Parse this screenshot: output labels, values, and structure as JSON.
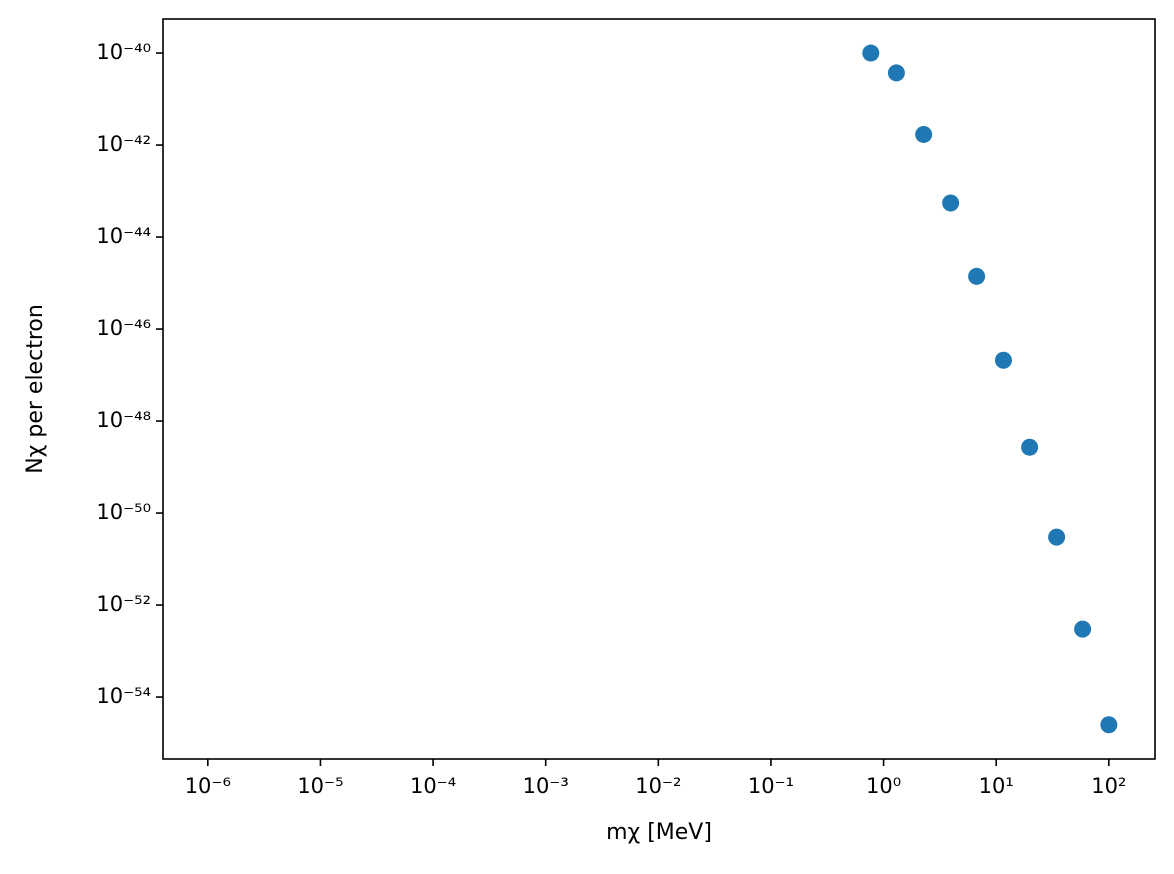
{
  "chart_data": {
    "type": "scatter",
    "x_label": "mχ [MeV]",
    "y_label": "Nχ per electron",
    "x_log": true,
    "y_log": true,
    "color": "#1f77b4",
    "x": [
      0.77,
      1.3,
      2.27,
      3.94,
      6.7,
      11.6,
      19.8,
      34.4,
      58.5,
      100
    ],
    "values": [
      1e-40,
      3.7e-41,
      1.7e-42,
      5.5e-44,
      1.4e-45,
      2.1e-47,
      2.7e-49,
      3e-51,
      3e-53,
      2.5e-55
    ],
    "xlim": [
      4e-07,
      257
    ],
    "ylim": [
      4.5e-56,
      5.5e-40
    ],
    "xticks": [
      {
        "value": 1e-06,
        "label": "10⁻⁶"
      },
      {
        "value": 1e-05,
        "label": "10⁻⁵"
      },
      {
        "value": 0.0001,
        "label": "10⁻⁴"
      },
      {
        "value": 0.001,
        "label": "10⁻³"
      },
      {
        "value": 0.01,
        "label": "10⁻²"
      },
      {
        "value": 0.1,
        "label": "10⁻¹"
      },
      {
        "value": 1,
        "label": "10⁰"
      },
      {
        "value": 10,
        "label": "10¹"
      },
      {
        "value": 100,
        "label": "10²"
      }
    ],
    "yticks": [
      {
        "value": 1e-40,
        "label": "10⁻⁴⁰"
      },
      {
        "value": 1e-42,
        "label": "10⁻⁴²"
      },
      {
        "value": 1e-44,
        "label": "10⁻⁴⁴"
      },
      {
        "value": 1e-46,
        "label": "10⁻⁴⁶"
      },
      {
        "value": 1e-48,
        "label": "10⁻⁴⁸"
      },
      {
        "value": 1e-50,
        "label": "10⁻⁵⁰"
      },
      {
        "value": 1e-52,
        "label": "10⁻⁵²"
      },
      {
        "value": 1e-54,
        "label": "10⁻⁵⁴"
      }
    ]
  }
}
